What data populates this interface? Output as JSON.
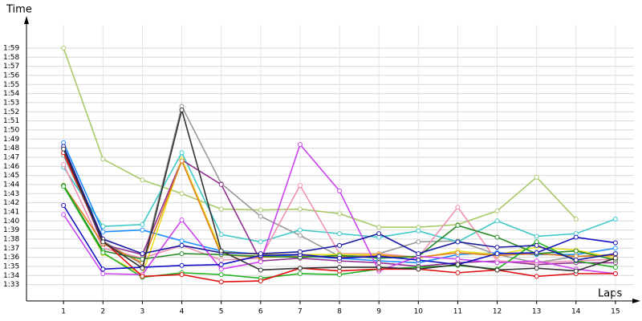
{
  "chart_data": {
    "type": "line",
    "x_label": "Laps",
    "y_label": "Time",
    "x": [
      1,
      2,
      3,
      4,
      5,
      6,
      7,
      8,
      9,
      10,
      11,
      12,
      13,
      14,
      15
    ],
    "xlim": [
      0.06,
      15.47
    ],
    "xticks": [
      1,
      2,
      3,
      4,
      5,
      6,
      7,
      8,
      9,
      10,
      11,
      12,
      13,
      14,
      15
    ],
    "ylim": [
      91.2,
      121.5
    ],
    "yticks": [
      {
        "value": 93,
        "label": "1:33"
      },
      {
        "value": 94,
        "label": "1:34"
      },
      {
        "value": 95,
        "label": "1:35"
      },
      {
        "value": 96,
        "label": "1:36"
      },
      {
        "value": 97,
        "label": "1:37"
      },
      {
        "value": 98,
        "label": "1:38"
      },
      {
        "value": 99,
        "label": "1:39"
      },
      {
        "value": 100,
        "label": "1:40"
      },
      {
        "value": 101,
        "label": "1:41"
      },
      {
        "value": 102,
        "label": "1:42"
      },
      {
        "value": 103,
        "label": "1:43"
      },
      {
        "value": 104,
        "label": "1:44"
      },
      {
        "value": 105,
        "label": "1:45"
      },
      {
        "value": 106,
        "label": "1:46"
      },
      {
        "value": 107,
        "label": "1:47"
      },
      {
        "value": 108,
        "label": "1:48"
      },
      {
        "value": 109,
        "label": "1:49"
      },
      {
        "value": 110,
        "label": "1:50"
      },
      {
        "value": 111,
        "label": "1:51"
      },
      {
        "value": 112,
        "label": "1:52"
      },
      {
        "value": 113,
        "label": "1:53"
      },
      {
        "value": 114,
        "label": "1:54"
      },
      {
        "value": 115,
        "label": "1:55"
      },
      {
        "value": 116,
        "label": "1:56"
      },
      {
        "value": 117,
        "label": "1:57"
      },
      {
        "value": 118,
        "label": "1:58"
      },
      {
        "value": 119,
        "label": "1:59"
      }
    ],
    "grid": true,
    "series": [
      {
        "color": "#a9c96a",
        "values": [
          119,
          106.8,
          104.5,
          103,
          101.3,
          101.2,
          101.3,
          100.8,
          99.3,
          99.3,
          99.6,
          101.1,
          104.8,
          100.2,
          null
        ]
      },
      {
        "color": "#999999",
        "values": [
          107.2,
          97.8,
          95.2,
          112.6,
          104.1,
          100.5,
          98.4,
          96.1,
          96.4,
          97.7,
          97.8,
          96.3,
          95.4,
          96.1,
          96.3
        ]
      },
      {
        "color": "#40c8c8",
        "values": [
          105.9,
          99.4,
          99.6,
          107.5,
          98.5,
          97.7,
          99,
          98.6,
          98.2,
          98.9,
          97.7,
          100,
          98.3,
          98.6,
          100.2
        ]
      },
      {
        "color": "#1e90ff",
        "values": [
          108.6,
          98.8,
          99,
          97.8,
          96.7,
          96.3,
          96.1,
          95.9,
          95.6,
          95.4,
          96.3,
          96.5,
          96.3,
          96.3,
          97
        ]
      },
      {
        "color": "#903090",
        "values": [
          108,
          97.4,
          96.3,
          106.7,
          104,
          95.6,
          95.9,
          95.6,
          95.4,
          95,
          95.4,
          95.6,
          95.2,
          95.4,
          95.4
        ]
      },
      {
        "color": "#f090b0",
        "values": [
          106.2,
          97,
          95.9,
          97.3,
          95.7,
          95.9,
          103.9,
          96.4,
          96.4,
          96,
          101.5,
          95.6,
          95.4,
          95.6,
          95.8
        ]
      },
      {
        "color": "#e8e020",
        "values": [
          103.9,
          96.4,
          94.1,
          106.8,
          96.6,
          96.3,
          96.3,
          96.3,
          96.3,
          95.9,
          96.7,
          96.3,
          97.1,
          96.8,
          95.9
        ]
      },
      {
        "color": "#e08020",
        "values": [
          103.9,
          97.5,
          95.4,
          106.6,
          96.3,
          96,
          96.1,
          96,
          96.2,
          96,
          96.5,
          96.2,
          96.4,
          96.1,
          96.2
        ]
      },
      {
        "color": "#2a8a2a",
        "values": [
          103.9,
          96.7,
          95.8,
          96.4,
          96.3,
          96.1,
          96,
          96.2,
          95.9,
          96.1,
          99.5,
          98.2,
          96.4,
          96.7,
          95.7
        ]
      },
      {
        "color": "#20b020",
        "values": [
          103.8,
          96.5,
          93.8,
          94.3,
          94.1,
          93.7,
          94.2,
          94.1,
          94.7,
          94.9,
          95.1,
          94.7,
          97.7,
          95.6,
          94.9
        ]
      },
      {
        "color": "#cc44ee",
        "values": [
          100.7,
          94.2,
          94.1,
          100.1,
          94.7,
          95.5,
          108.4,
          103.3,
          94.5,
          96.1,
          95.8,
          95.4,
          95.6,
          94.7,
          94.2
        ]
      },
      {
        "color": "#e01010",
        "values": [
          107.5,
          97.8,
          93.9,
          94.1,
          93.3,
          93.4,
          94.8,
          94.5,
          94.7,
          94.7,
          94.3,
          94.6,
          93.9,
          94.2,
          94.2
        ]
      },
      {
        "color": "#1010c0",
        "values": [
          101.7,
          94.7,
          94.9,
          95.1,
          95.2,
          96.2,
          96.3,
          95.9,
          96.1,
          95.7,
          95.2,
          96.4,
          96.5,
          98.2,
          97.6
        ]
      },
      {
        "color": "#1a1aa0",
        "values": [
          108.2,
          98,
          96.4,
          97.3,
          96.5,
          96.4,
          96.6,
          97.3,
          98.6,
          96.4,
          97.7,
          97.1,
          97.3,
          95.7,
          96.4
        ]
      },
      {
        "color": "#333333",
        "values": [
          107.9,
          97.7,
          94.8,
          112.2,
          96.7,
          94.6,
          94.8,
          94.9,
          94.9,
          94.7,
          95.2,
          94.6,
          94.8,
          94.5,
          95.9
        ]
      }
    ]
  }
}
